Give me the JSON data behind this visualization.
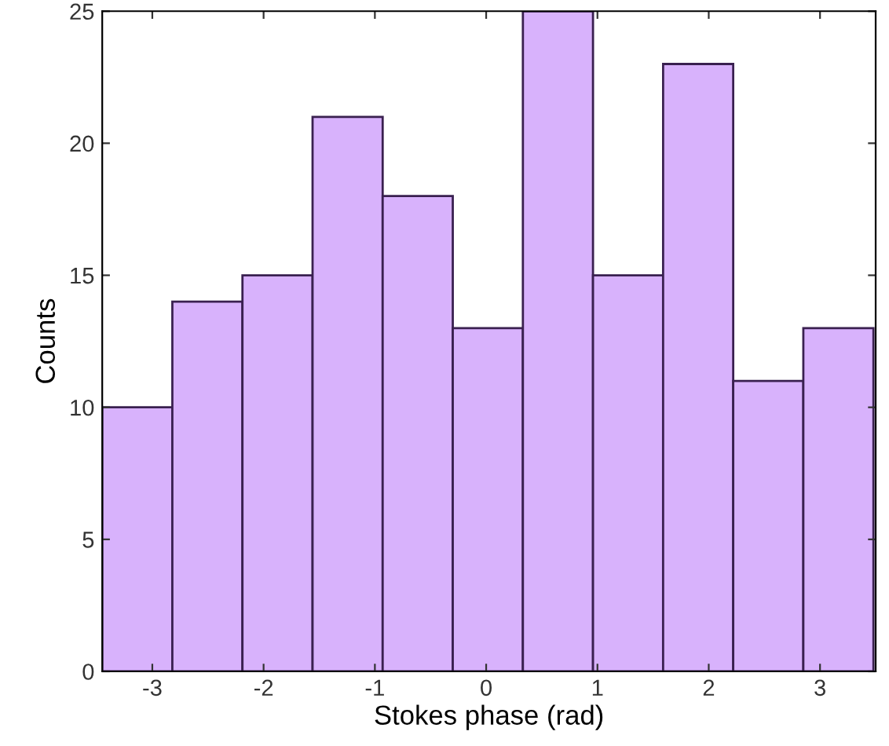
{
  "chart_data": {
    "type": "histogram",
    "xlabel": "Stokes phase (rad)",
    "ylabel": "Counts",
    "bins": [
      -3.45,
      -2.82,
      -2.19,
      -1.56,
      -0.93,
      -0.3,
      0.33,
      0.96,
      1.59,
      2.22,
      2.85,
      3.48
    ],
    "values": [
      10,
      14,
      15,
      21,
      18,
      13,
      25,
      15,
      23,
      11,
      13
    ],
    "color": "#d8b2fc",
    "xlim": [
      -3.45,
      3.5
    ],
    "xticks": [
      -3,
      -2,
      -1,
      0,
      1,
      2,
      3
    ],
    "ylim": [
      0,
      25
    ],
    "yticks": [
      0,
      5,
      10,
      15,
      20,
      25
    ],
    "grid": false,
    "legend": false
  }
}
